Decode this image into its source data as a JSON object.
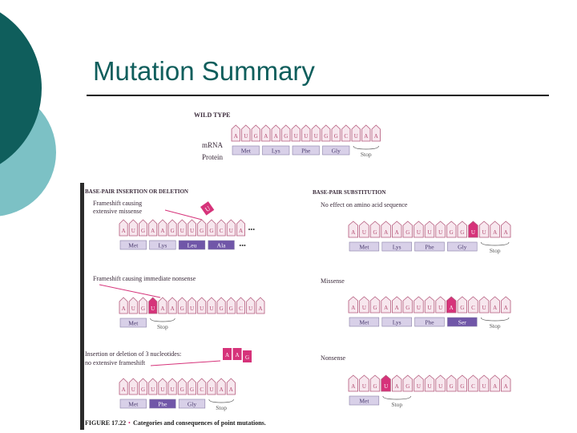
{
  "slide": {
    "title": "Mutation Summary"
  },
  "colors": {
    "teal_dark": "#0f5e5c",
    "teal_light": "#7cc1c5",
    "codon_fill": "#f7e7ee",
    "codon_stroke": "#b45a7c",
    "codon_text": "#b24b70",
    "highlight_pink": "#d6337a",
    "protein_fill": "#d8d0e8",
    "protein_highlight": "#7056a8",
    "protein_text": "#4a3b6e"
  },
  "figure": {
    "wild_type": {
      "heading": "WILD TYPE",
      "mrna_label": "mRNA",
      "protein_label": "Protein",
      "bases": [
        "A",
        "U",
        "G",
        "A",
        "A",
        "G",
        "U",
        "U",
        "U",
        "G",
        "G",
        "C",
        "U",
        "A",
        "A"
      ],
      "highlight_bases": [],
      "proteins": [
        "Met",
        "Lys",
        "Phe",
        "Gly"
      ],
      "highlight_proteins": [],
      "stop": "Stop"
    },
    "insertion_heading": "BASE-PAIR INSERTION OR DELETION",
    "substitution_heading": "BASE-PAIR SUBSTITUTION",
    "ins1": {
      "desc": [
        "Frameshift causing",
        "extensive missense"
      ],
      "inserted": "U",
      "bases": [
        "A",
        "U",
        "G",
        "A",
        "A",
        "G",
        "U",
        "U",
        "G",
        "G",
        "C",
        "U",
        "A"
      ],
      "highlight_bases": [],
      "dots": "•••",
      "proteins": [
        "Met",
        "Lys",
        "Leu",
        "Ala"
      ],
      "highlight_proteins": [
        2,
        3
      ],
      "protein_dots": "•••"
    },
    "ins2": {
      "desc": [
        "Frameshift causing immediate nonsense"
      ],
      "bases": [
        "A",
        "U",
        "G",
        "U",
        "A",
        "A",
        "G",
        "U",
        "U",
        "U",
        "G",
        "G",
        "C",
        "U",
        "A"
      ],
      "highlight_bases": [
        3
      ],
      "proteins": [
        "Met"
      ],
      "highlight_proteins": [],
      "stop": "Stop"
    },
    "ins3": {
      "desc": [
        "Insertion or deletion of 3 nucleotides:",
        "no extensive frameshift"
      ],
      "inserted": [
        "A",
        "A",
        "G"
      ],
      "bases": [
        "A",
        "U",
        "G",
        "U",
        "U",
        "U",
        "G",
        "G",
        "C",
        "U",
        "A",
        "A"
      ],
      "highlight_bases": [],
      "proteins": [
        "Met",
        "Phe",
        "Gly"
      ],
      "highlight_proteins": [
        1
      ],
      "stop": "Stop"
    },
    "sub1": {
      "desc": [
        "No effect on amino acid sequence"
      ],
      "bases": [
        "A",
        "U",
        "G",
        "A",
        "A",
        "G",
        "U",
        "U",
        "U",
        "G",
        "G",
        "U",
        "U",
        "A",
        "A"
      ],
      "highlight_bases": [
        11
      ],
      "proteins": [
        "Met",
        "Lys",
        "Phe",
        "Gly"
      ],
      "highlight_proteins": [],
      "stop": "Stop"
    },
    "sub2": {
      "desc": [
        "Missense"
      ],
      "bases": [
        "A",
        "U",
        "G",
        "A",
        "A",
        "G",
        "U",
        "U",
        "U",
        "A",
        "G",
        "C",
        "U",
        "A",
        "A"
      ],
      "highlight_bases": [
        9
      ],
      "proteins": [
        "Met",
        "Lys",
        "Phe",
        "Ser"
      ],
      "highlight_proteins": [
        3
      ],
      "stop": "Stop"
    },
    "sub3": {
      "desc": [
        "Nonsense"
      ],
      "bases": [
        "A",
        "U",
        "G",
        "U",
        "A",
        "G",
        "U",
        "U",
        "U",
        "G",
        "G",
        "C",
        "U",
        "A",
        "A"
      ],
      "highlight_bases": [
        3
      ],
      "proteins": [
        "Met"
      ],
      "highlight_proteins": [],
      "stop": "Stop"
    },
    "caption": {
      "figure_label": "FIGURE 17.22",
      "text": "Categories and consequences of point mutations."
    }
  }
}
